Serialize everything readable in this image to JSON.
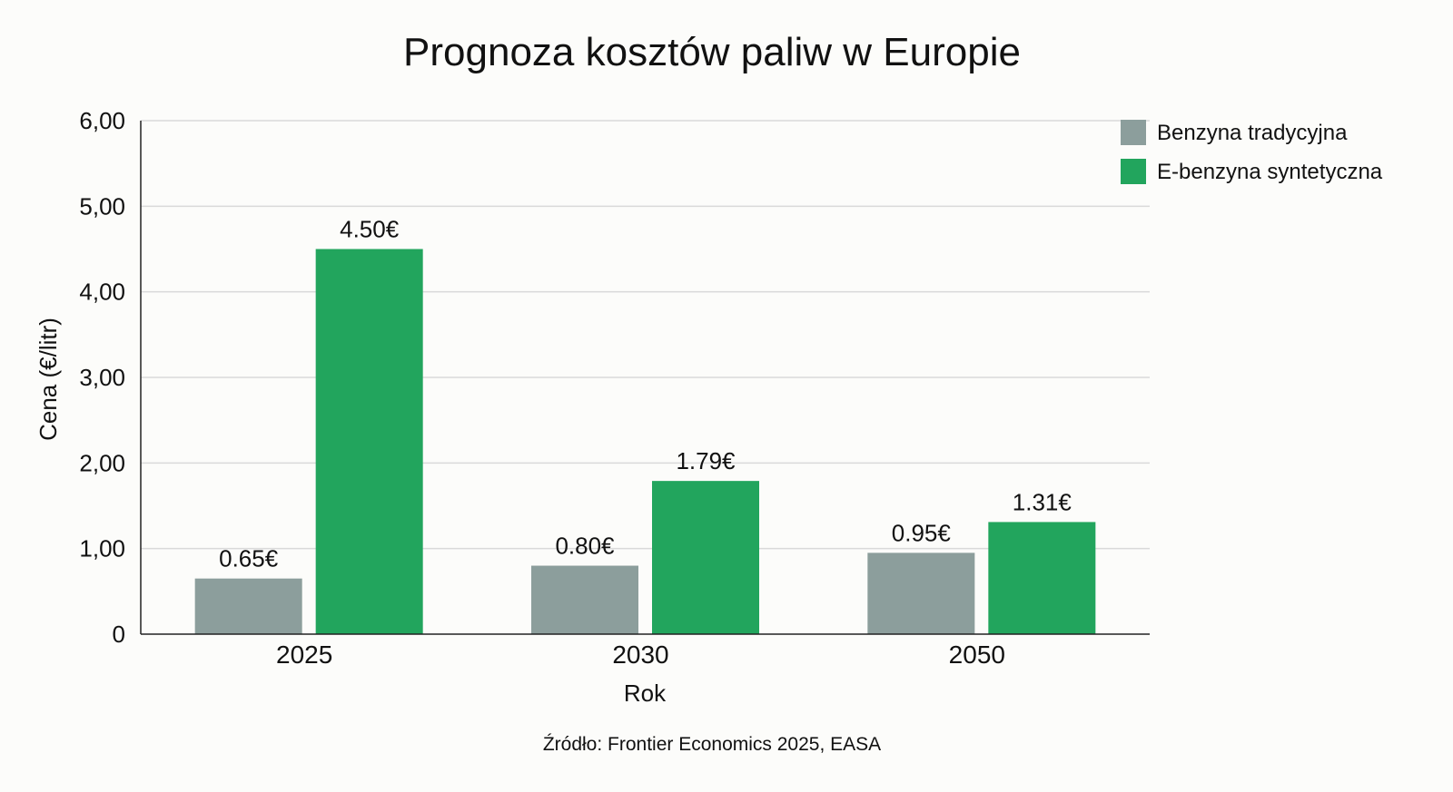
{
  "chart_data": {
    "type": "bar",
    "title": "Prognoza kosztów paliw w Europie",
    "xlabel": "Rok",
    "ylabel": "Cena (€/litr)",
    "categories": [
      "2025",
      "2030",
      "2050"
    ],
    "series": [
      {
        "name": "Benzyna tradycyjna",
        "color": "#8c9e9c",
        "values": [
          0.65,
          0.8,
          0.95
        ],
        "labels": [
          "0.65€",
          "0.80€",
          "0.95€"
        ]
      },
      {
        "name": "E-benzyna syntetyczna",
        "color": "#22a55d",
        "values": [
          4.5,
          1.79,
          1.31
        ],
        "labels": [
          "4.50€",
          "1.79€",
          "1.31€"
        ]
      }
    ],
    "ylim": [
      0,
      6
    ],
    "yticks": [
      0,
      1,
      2,
      3,
      4,
      5,
      6
    ],
    "ytick_labels": [
      "0",
      "1,00",
      "2,00",
      "3,00",
      "4,00",
      "5,00",
      "6,00"
    ],
    "grid": true,
    "legend_position": "top-right",
    "source": "Źródło: Frontier Economics 2025, EASA"
  }
}
